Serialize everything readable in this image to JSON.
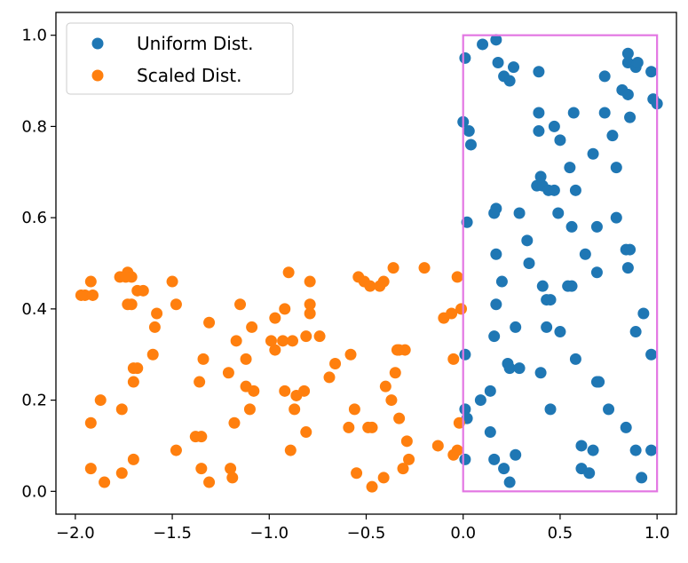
{
  "chart_data": {
    "type": "scatter",
    "title": "",
    "xlabel": "",
    "ylabel": "",
    "xlim": [
      -2.1,
      1.1
    ],
    "ylim": [
      -0.05,
      1.05
    ],
    "xticks": [
      -2.0,
      -1.5,
      -1.0,
      -0.5,
      0.0,
      0.5,
      1.0
    ],
    "xtick_labels": [
      "−2.0",
      "−1.5",
      "−1.0",
      "−0.5",
      "0.0",
      "0.5",
      "1.0"
    ],
    "yticks": [
      0.0,
      0.2,
      0.4,
      0.6,
      0.8,
      1.0
    ],
    "ytick_labels": [
      "0.0",
      "0.2",
      "0.4",
      "0.6",
      "0.8",
      "1.0"
    ],
    "grid": false,
    "legend": {
      "position": "top-left"
    },
    "series": [
      {
        "name": "Uniform Dist.",
        "color": "#1f77b4",
        "points": [
          [
            0.01,
            0.95
          ],
          [
            0.1,
            0.98
          ],
          [
            0.17,
            0.99
          ],
          [
            0.18,
            0.94
          ],
          [
            0.21,
            0.91
          ],
          [
            0.24,
            0.9
          ],
          [
            0.26,
            0.93
          ],
          [
            0.39,
            0.92
          ],
          [
            0.73,
            0.91
          ],
          [
            0.85,
            0.96
          ],
          [
            0.85,
            0.94
          ],
          [
            0.89,
            0.93
          ],
          [
            0.9,
            0.94
          ],
          [
            0.97,
            0.92
          ],
          [
            0.82,
            0.88
          ],
          [
            0.85,
            0.87
          ],
          [
            0.98,
            0.86
          ],
          [
            1.0,
            0.85
          ],
          [
            0.0,
            0.81
          ],
          [
            0.03,
            0.79
          ],
          [
            0.04,
            0.76
          ],
          [
            0.39,
            0.83
          ],
          [
            0.47,
            0.8
          ],
          [
            0.57,
            0.83
          ],
          [
            0.73,
            0.83
          ],
          [
            0.86,
            0.82
          ],
          [
            0.39,
            0.79
          ],
          [
            0.5,
            0.77
          ],
          [
            0.77,
            0.78
          ],
          [
            0.67,
            0.74
          ],
          [
            0.79,
            0.71
          ],
          [
            0.55,
            0.71
          ],
          [
            0.38,
            0.67
          ],
          [
            0.41,
            0.67
          ],
          [
            0.4,
            0.69
          ],
          [
            0.44,
            0.66
          ],
          [
            0.47,
            0.66
          ],
          [
            0.58,
            0.66
          ],
          [
            0.16,
            0.61
          ],
          [
            0.17,
            0.62
          ],
          [
            0.29,
            0.61
          ],
          [
            0.49,
            0.61
          ],
          [
            0.02,
            0.59
          ],
          [
            0.56,
            0.58
          ],
          [
            0.69,
            0.58
          ],
          [
            0.79,
            0.6
          ],
          [
            0.84,
            0.53
          ],
          [
            0.86,
            0.53
          ],
          [
            0.33,
            0.55
          ],
          [
            0.17,
            0.52
          ],
          [
            0.63,
            0.52
          ],
          [
            0.34,
            0.5
          ],
          [
            0.2,
            0.46
          ],
          [
            0.54,
            0.45
          ],
          [
            0.56,
            0.45
          ],
          [
            0.69,
            0.48
          ],
          [
            0.85,
            0.49
          ],
          [
            0.41,
            0.45
          ],
          [
            0.45,
            0.42
          ],
          [
            0.43,
            0.42
          ],
          [
            0.17,
            0.41
          ],
          [
            0.93,
            0.39
          ],
          [
            0.27,
            0.36
          ],
          [
            0.16,
            0.34
          ],
          [
            0.43,
            0.36
          ],
          [
            0.5,
            0.35
          ],
          [
            0.89,
            0.35
          ],
          [
            0.01,
            0.3
          ],
          [
            0.58,
            0.29
          ],
          [
            0.97,
            0.3
          ],
          [
            0.23,
            0.28
          ],
          [
            0.24,
            0.27
          ],
          [
            0.29,
            0.27
          ],
          [
            0.4,
            0.26
          ],
          [
            0.69,
            0.24
          ],
          [
            0.7,
            0.24
          ],
          [
            0.14,
            0.22
          ],
          [
            0.09,
            0.2
          ],
          [
            0.45,
            0.18
          ],
          [
            0.75,
            0.18
          ],
          [
            0.01,
            0.18
          ],
          [
            0.02,
            0.16
          ],
          [
            0.14,
            0.13
          ],
          [
            0.84,
            0.14
          ],
          [
            0.61,
            0.1
          ],
          [
            0.67,
            0.09
          ],
          [
            0.89,
            0.09
          ],
          [
            0.97,
            0.09
          ],
          [
            0.01,
            0.07
          ],
          [
            0.16,
            0.07
          ],
          [
            0.27,
            0.08
          ],
          [
            0.21,
            0.05
          ],
          [
            0.24,
            0.02
          ],
          [
            0.61,
            0.05
          ],
          [
            0.65,
            0.04
          ],
          [
            0.92,
            0.03
          ]
        ]
      },
      {
        "name": "Scaled Dist.",
        "color": "#ff7f0e",
        "points": [
          [
            -1.97,
            0.43
          ],
          [
            -1.95,
            0.43
          ],
          [
            -1.91,
            0.43
          ],
          [
            -1.92,
            0.46
          ],
          [
            -1.77,
            0.47
          ],
          [
            -1.73,
            0.48
          ],
          [
            -1.71,
            0.47
          ],
          [
            -1.74,
            0.47
          ],
          [
            -1.68,
            0.44
          ],
          [
            -1.65,
            0.44
          ],
          [
            -1.73,
            0.41
          ],
          [
            -1.71,
            0.41
          ],
          [
            -1.5,
            0.46
          ],
          [
            -1.48,
            0.41
          ],
          [
            -1.58,
            0.39
          ],
          [
            -1.59,
            0.36
          ],
          [
            -1.31,
            0.37
          ],
          [
            -1.15,
            0.41
          ],
          [
            -1.09,
            0.36
          ],
          [
            -0.97,
            0.38
          ],
          [
            -0.92,
            0.4
          ],
          [
            -0.9,
            0.48
          ],
          [
            -0.79,
            0.46
          ],
          [
            -0.79,
            0.41
          ],
          [
            -0.79,
            0.39
          ],
          [
            -0.81,
            0.34
          ],
          [
            -0.74,
            0.34
          ],
          [
            -0.54,
            0.47
          ],
          [
            -0.51,
            0.46
          ],
          [
            -0.48,
            0.45
          ],
          [
            -0.43,
            0.45
          ],
          [
            -0.41,
            0.46
          ],
          [
            -0.36,
            0.49
          ],
          [
            -0.2,
            0.49
          ],
          [
            -0.03,
            0.47
          ],
          [
            -0.01,
            0.4
          ],
          [
            -0.06,
            0.39
          ],
          [
            -0.1,
            0.38
          ],
          [
            -0.93,
            0.33
          ],
          [
            -0.88,
            0.33
          ],
          [
            -0.97,
            0.31
          ],
          [
            -0.99,
            0.33
          ],
          [
            -1.17,
            0.33
          ],
          [
            -1.12,
            0.29
          ],
          [
            -1.34,
            0.29
          ],
          [
            -1.21,
            0.26
          ],
          [
            -1.36,
            0.24
          ],
          [
            -1.6,
            0.3
          ],
          [
            -1.68,
            0.27
          ],
          [
            -1.7,
            0.27
          ],
          [
            -1.7,
            0.24
          ],
          [
            -1.12,
            0.23
          ],
          [
            -1.08,
            0.22
          ],
          [
            -0.92,
            0.22
          ],
          [
            -0.86,
            0.21
          ],
          [
            -0.82,
            0.22
          ],
          [
            -0.66,
            0.28
          ],
          [
            -0.69,
            0.25
          ],
          [
            -0.58,
            0.3
          ],
          [
            -0.34,
            0.31
          ],
          [
            -0.33,
            0.31
          ],
          [
            -0.3,
            0.31
          ],
          [
            -0.35,
            0.26
          ],
          [
            -0.4,
            0.23
          ],
          [
            -0.37,
            0.2
          ],
          [
            -0.05,
            0.29
          ],
          [
            -1.87,
            0.2
          ],
          [
            -1.76,
            0.18
          ],
          [
            -1.92,
            0.15
          ],
          [
            -1.18,
            0.15
          ],
          [
            -1.1,
            0.18
          ],
          [
            -0.87,
            0.18
          ],
          [
            -0.56,
            0.18
          ],
          [
            -0.59,
            0.14
          ],
          [
            -0.49,
            0.14
          ],
          [
            -0.47,
            0.14
          ],
          [
            -0.33,
            0.16
          ],
          [
            -0.02,
            0.15
          ],
          [
            -1.38,
            0.12
          ],
          [
            -1.35,
            0.12
          ],
          [
            -0.81,
            0.13
          ],
          [
            -0.89,
            0.09
          ],
          [
            -0.29,
            0.11
          ],
          [
            -0.13,
            0.1
          ],
          [
            -0.05,
            0.08
          ],
          [
            -0.03,
            0.09
          ],
          [
            -1.48,
            0.09
          ],
          [
            -1.7,
            0.07
          ],
          [
            -0.28,
            0.07
          ],
          [
            -1.92,
            0.05
          ],
          [
            -1.85,
            0.02
          ],
          [
            -1.76,
            0.04
          ],
          [
            -1.35,
            0.05
          ],
          [
            -1.31,
            0.02
          ],
          [
            -1.2,
            0.05
          ],
          [
            -1.19,
            0.03
          ],
          [
            -0.55,
            0.04
          ],
          [
            -0.47,
            0.01
          ],
          [
            -0.41,
            0.03
          ],
          [
            -0.31,
            0.05
          ]
        ]
      }
    ],
    "annotations": [
      {
        "type": "rectangle-outline",
        "color": "#e377e3",
        "x": [
          0.0,
          1.0
        ],
        "y": [
          0.0,
          1.0
        ]
      }
    ]
  }
}
